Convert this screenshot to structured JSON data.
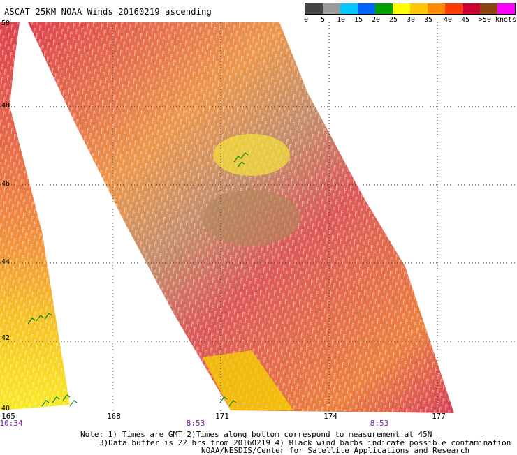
{
  "title": "ASCAT 25KM NOAA Winds 20160219 ascending",
  "legend": {
    "colors": [
      "#444444",
      "#9a9a9a",
      "#00c8ff",
      "#0064ff",
      "#00a000",
      "#ffff00",
      "#ffc800",
      "#ff8c00",
      "#ff3c00",
      "#cc0033",
      "#8b4513",
      "#ff00ff",
      "#b000b0",
      "#6a00a8"
    ],
    "labels": [
      "0",
      "5",
      "10",
      "15",
      "20",
      "25",
      "30",
      "35",
      "40",
      "45",
      ">50 knots"
    ]
  },
  "axes": {
    "longitudes": [
      "165",
      "168",
      "171",
      "174",
      "177"
    ],
    "latitudes": [
      "50",
      "48",
      "46",
      "44",
      "42",
      "40"
    ],
    "times": [
      "10:34",
      "8:53",
      "8:53"
    ]
  },
  "notes": {
    "line1": "Note: 1) Times are GMT 2)Times along bottom correspond to measurement at 45N",
    "line2": "3)Data buffer is 22 hrs from 20160219 4) Black wind barbs indicate possible contamination",
    "line3": "NOAA/NESDIS/Center for Satellite Applications and Research"
  }
}
